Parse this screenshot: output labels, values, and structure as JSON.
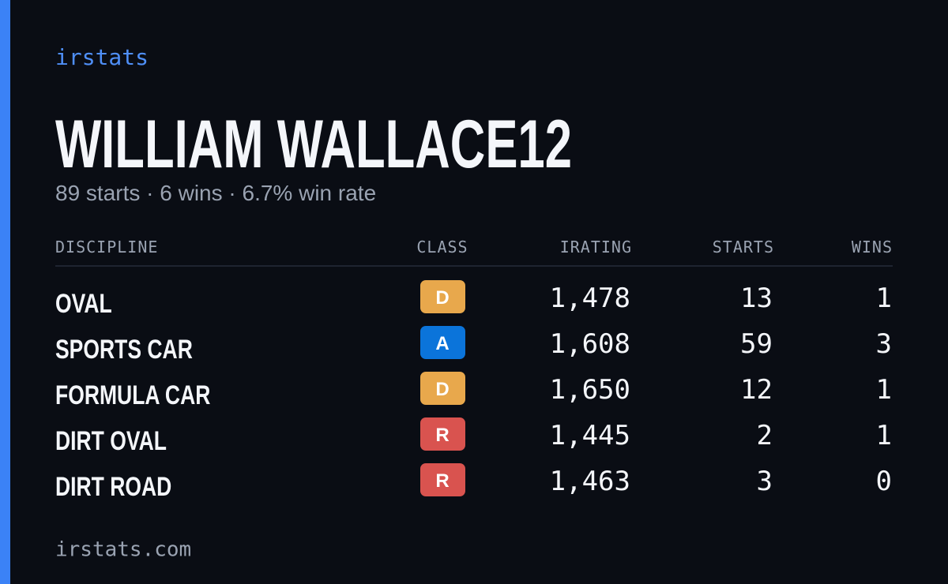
{
  "brand": "irstats",
  "driver": {
    "name": "WILLIAM WALLACE12",
    "summary": "89 starts · 6 wins · 6.7% win rate"
  },
  "table": {
    "headers": [
      "DISCIPLINE",
      "CLASS",
      "IRATING",
      "STARTS",
      "WINS"
    ],
    "rows": [
      {
        "discipline": "OVAL",
        "class": "D",
        "color": "#e8a84c",
        "irating": "1,478",
        "starts": 13,
        "wins": 1
      },
      {
        "discipline": "SPORTS CAR",
        "class": "A",
        "color": "#0b74da",
        "irating": "1,608",
        "starts": 59,
        "wins": 3
      },
      {
        "discipline": "FORMULA CAR",
        "class": "D",
        "color": "#e8a84c",
        "irating": "1,650",
        "starts": 12,
        "wins": 1
      },
      {
        "discipline": "DIRT OVAL",
        "class": "R",
        "color": "#d9534f",
        "irating": "1,445",
        "starts": 2,
        "wins": 1
      },
      {
        "discipline": "DIRT ROAD",
        "class": "R",
        "color": "#d9534f",
        "irating": "1,463",
        "starts": 3,
        "wins": 0
      }
    ]
  },
  "footer": "irstats.com"
}
